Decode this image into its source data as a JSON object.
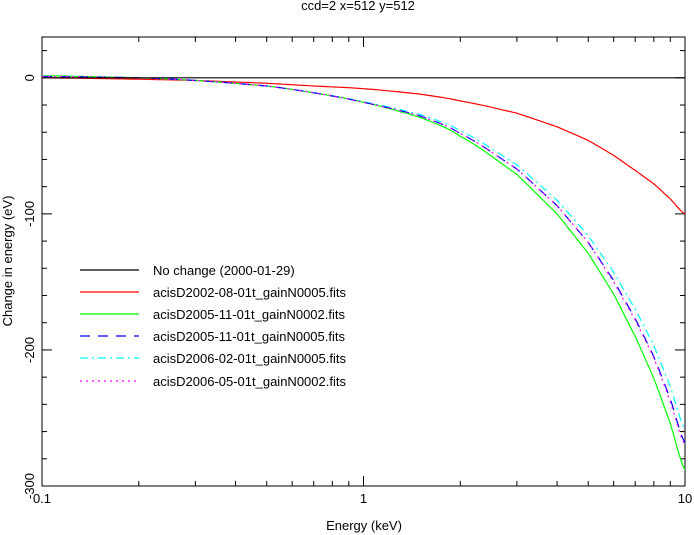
{
  "chart_data": {
    "type": "line",
    "title": "ccd=2 x=512 y=512",
    "xlabel": "Energy (keV)",
    "ylabel": "Change in energy (eV)",
    "xscale": "log",
    "xlim": [
      0.1,
      10
    ],
    "ylim": [
      -300,
      30
    ],
    "xticks": [
      {
        "value": 0.1,
        "label": "0.1"
      },
      {
        "value": 1,
        "label": "1"
      },
      {
        "value": 10,
        "label": "10"
      }
    ],
    "yticks": [
      {
        "value": 0,
        "label": "0"
      },
      {
        "value": -100,
        "label": "-100"
      },
      {
        "value": -200,
        "label": "-200"
      },
      {
        "value": -300,
        "label": "-300"
      }
    ],
    "legend_position": "center-left",
    "x": [
      0.1,
      0.2,
      0.3,
      0.5,
      0.7,
      1,
      1.5,
      2,
      3,
      4,
      5,
      6,
      7,
      8,
      9,
      10
    ],
    "series": [
      {
        "name": "No change (2000-01-29)",
        "color": "#000000",
        "dash": "solid",
        "values": [
          0,
          0,
          0,
          0,
          0,
          0,
          0,
          0,
          0,
          0,
          0,
          0,
          0,
          0,
          0,
          0
        ]
      },
      {
        "name": "acisD2002-08-01t_gainN0005.fits",
        "color": "#ff0000",
        "dash": "solid",
        "values": [
          0,
          -1,
          -2,
          -4,
          -6,
          -8,
          -12,
          -17,
          -26,
          -36,
          -46,
          -57,
          -68,
          -78,
          -89,
          -100
        ]
      },
      {
        "name": "acisD2005-11-01t_gainN0002.fits",
        "color": "#00ff00",
        "dash": "solid",
        "values": [
          1.5,
          0,
          -2,
          -6,
          -11,
          -18,
          -29,
          -43,
          -71,
          -100,
          -129,
          -159,
          -190,
          -221,
          -254,
          -288
        ]
      },
      {
        "name": "acisD2005-11-01t_gainN0005.fits",
        "color": "#0000ff",
        "dash": "dashed",
        "values": [
          1,
          0,
          -2,
          -6,
          -11,
          -18,
          -28,
          -41,
          -67,
          -94,
          -121,
          -149,
          -177,
          -205,
          -236,
          -268
        ]
      },
      {
        "name": "acisD2006-02-01t_gainN0005.fits",
        "color": "#00ffff",
        "dash": "dashdot",
        "values": [
          1,
          0,
          -2,
          -6,
          -11,
          -17.5,
          -27,
          -39,
          -64,
          -90,
          -116,
          -143,
          -170,
          -197,
          -227,
          -258
        ]
      },
      {
        "name": "acisD2006-05-01t_gainN0002.fits",
        "color": "#ff00ff",
        "dash": "dotted",
        "values": [
          1,
          0,
          -2,
          -6,
          -11,
          -18,
          -28,
          -41,
          -67,
          -94,
          -121,
          -150,
          -178,
          -206,
          -238,
          -270
        ]
      }
    ]
  }
}
